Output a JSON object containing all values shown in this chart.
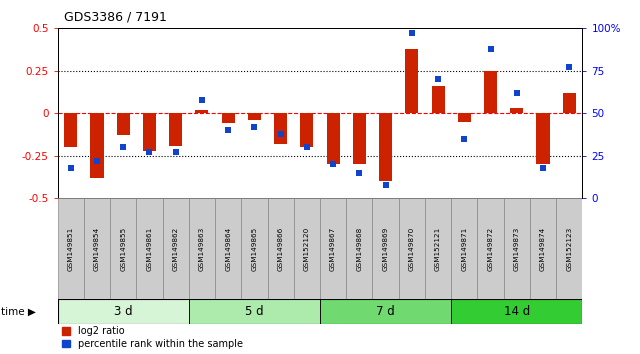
{
  "title": "GDS3386 / 7191",
  "samples": [
    "GSM149851",
    "GSM149854",
    "GSM149855",
    "GSM149861",
    "GSM149862",
    "GSM149863",
    "GSM149864",
    "GSM149865",
    "GSM149866",
    "GSM152120",
    "GSM149867",
    "GSM149868",
    "GSM149869",
    "GSM149870",
    "GSM152121",
    "GSM149871",
    "GSM149872",
    "GSM149873",
    "GSM149874",
    "GSM152123"
  ],
  "log2_ratio": [
    -0.2,
    -0.38,
    -0.13,
    -0.22,
    -0.19,
    0.02,
    -0.06,
    -0.04,
    -0.18,
    -0.2,
    -0.3,
    -0.3,
    -0.4,
    0.38,
    0.16,
    -0.05,
    0.25,
    0.03,
    -0.3,
    0.12
  ],
  "percentile_rank": [
    18,
    22,
    30,
    27,
    27,
    58,
    40,
    42,
    38,
    30,
    20,
    15,
    8,
    97,
    70,
    35,
    88,
    62,
    18,
    77
  ],
  "groups": [
    {
      "label": "3 d",
      "start": 0,
      "end": 5,
      "color": "#d6f5d6"
    },
    {
      "label": "5 d",
      "start": 5,
      "end": 10,
      "color": "#adebad"
    },
    {
      "label": "7 d",
      "start": 10,
      "end": 15,
      "color": "#70d970"
    },
    {
      "label": "14 d",
      "start": 15,
      "end": 20,
      "color": "#33cc33"
    }
  ],
  "bar_color_red": "#cc2200",
  "bar_color_blue": "#1144cc",
  "ylim_left": [
    -0.5,
    0.5
  ],
  "ylim_right": [
    0,
    100
  ],
  "yticks_left": [
    -0.5,
    -0.25,
    0.0,
    0.25,
    0.5
  ],
  "ytick_labels_left": [
    "-0.5",
    "-0.25",
    "0",
    "0.25",
    "0.5"
  ],
  "yticks_right": [
    0,
    25,
    50,
    75,
    100
  ],
  "ytick_labels_right": [
    "0",
    "25",
    "50",
    "75",
    "100%"
  ],
  "background_color": "#ffffff",
  "sample_box_color": "#cccccc",
  "sample_box_edge": "#888888"
}
